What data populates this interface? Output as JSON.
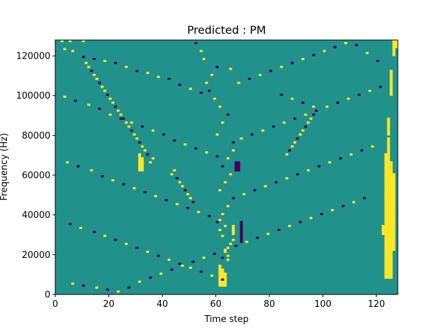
{
  "chart_data": {
    "type": "heatmap",
    "title": "Predicted : PM",
    "xlabel": "Time step",
    "ylabel": "Frequency (Hz)",
    "xlim": [
      0,
      128
    ],
    "ylim": [
      0,
      128000
    ],
    "x_ticks": [
      0,
      20,
      40,
      60,
      80,
      100,
      120
    ],
    "y_ticks": [
      0,
      20000,
      40000,
      60000,
      80000,
      100000,
      120000
    ],
    "x_tick_labels": [
      "0",
      "20",
      "40",
      "60",
      "80",
      "100",
      "120"
    ],
    "y_tick_labels": [
      "0",
      "20000",
      "40000",
      "60000",
      "80000",
      "100000",
      "120000"
    ],
    "grid_rows": 128,
    "grid_cols": 128,
    "background_value": 0,
    "colors": {
      "-1": "#440154",
      "0": "#21918c",
      "1": "#fde725"
    },
    "grid": false,
    "cells": [
      [
        2,
        127,
        1
      ],
      [
        5,
        127,
        1
      ],
      [
        10,
        127,
        1
      ],
      [
        3,
        123,
        1
      ],
      [
        6,
        122,
        1
      ],
      [
        10,
        119,
        -1
      ],
      [
        14,
        118,
        -1
      ],
      [
        18,
        117,
        1
      ],
      [
        22,
        116,
        -1
      ],
      [
        26,
        114,
        1
      ],
      [
        30,
        112,
        -1
      ],
      [
        34,
        111,
        1
      ],
      [
        38,
        109,
        1
      ],
      [
        42,
        108,
        -1
      ],
      [
        46,
        105,
        -1
      ],
      [
        50,
        103,
        1
      ],
      [
        54,
        101,
        -1
      ],
      [
        3,
        99,
        1
      ],
      [
        7,
        97,
        -1
      ],
      [
        12,
        95,
        1
      ],
      [
        16,
        93,
        -1
      ],
      [
        20,
        90,
        1
      ],
      [
        24,
        88,
        -1
      ],
      [
        28,
        86,
        1
      ],
      [
        32,
        84,
        -1
      ],
      [
        36,
        82,
        1
      ],
      [
        40,
        80,
        -1
      ],
      [
        44,
        77,
        -1
      ],
      [
        48,
        75,
        1
      ],
      [
        52,
        73,
        -1
      ],
      [
        56,
        71,
        1
      ],
      [
        60,
        69,
        -1
      ],
      [
        4,
        66,
        1
      ],
      [
        8,
        64,
        -1
      ],
      [
        13,
        62,
        1
      ],
      [
        17,
        59,
        -1
      ],
      [
        21,
        57,
        1
      ],
      [
        25,
        55,
        -1
      ],
      [
        29,
        53,
        1
      ],
      [
        33,
        51,
        -1
      ],
      [
        37,
        49,
        1
      ],
      [
        41,
        47,
        -1
      ],
      [
        45,
        45,
        1
      ],
      [
        49,
        43,
        -1
      ],
      [
        53,
        41,
        1
      ],
      [
        57,
        39,
        -1
      ],
      [
        61,
        37,
        1
      ],
      [
        5,
        35,
        -1
      ],
      [
        9,
        33,
        1
      ],
      [
        14,
        31,
        -1
      ],
      [
        18,
        29,
        1
      ],
      [
        22,
        27,
        -1
      ],
      [
        26,
        25,
        1
      ],
      [
        30,
        23,
        -1
      ],
      [
        34,
        21,
        1
      ],
      [
        38,
        19,
        -1
      ],
      [
        42,
        17,
        1
      ],
      [
        46,
        15,
        -1
      ],
      [
        50,
        13,
        1
      ],
      [
        54,
        11,
        -1
      ],
      [
        58,
        9,
        1
      ],
      [
        62,
        7,
        -1
      ],
      [
        6,
        5,
        1
      ],
      [
        10,
        4,
        -1
      ],
      [
        15,
        3,
        1
      ],
      [
        19,
        2,
        -1
      ],
      [
        23,
        1,
        1
      ],
      [
        27,
        3,
        -1
      ],
      [
        31,
        6,
        1
      ],
      [
        35,
        8,
        -1
      ],
      [
        39,
        10,
        1
      ],
      [
        43,
        12,
        -1
      ],
      [
        47,
        14,
        1
      ],
      [
        51,
        16,
        -1
      ],
      [
        55,
        18,
        1
      ],
      [
        59,
        20,
        -1
      ],
      [
        63,
        22,
        1
      ],
      [
        67,
        24,
        -1
      ],
      [
        71,
        26,
        1
      ],
      [
        75,
        28,
        -1
      ],
      [
        79,
        30,
        1
      ],
      [
        83,
        32,
        -1
      ],
      [
        87,
        34,
        1
      ],
      [
        91,
        36,
        -1
      ],
      [
        95,
        38,
        1
      ],
      [
        99,
        40,
        -1
      ],
      [
        103,
        42,
        1
      ],
      [
        107,
        44,
        -1
      ],
      [
        111,
        46,
        1
      ],
      [
        115,
        48,
        -1
      ],
      [
        70,
        50,
        1
      ],
      [
        74,
        52,
        -1
      ],
      [
        78,
        54,
        1
      ],
      [
        82,
        56,
        -1
      ],
      [
        86,
        58,
        1
      ],
      [
        90,
        60,
        -1
      ],
      [
        94,
        62,
        1
      ],
      [
        98,
        64,
        -1
      ],
      [
        102,
        66,
        1
      ],
      [
        106,
        68,
        -1
      ],
      [
        110,
        70,
        1
      ],
      [
        114,
        72,
        -1
      ],
      [
        118,
        74,
        1
      ],
      [
        66,
        76,
        -1
      ],
      [
        69,
        78,
        1
      ],
      [
        73,
        80,
        -1
      ],
      [
        77,
        82,
        1
      ],
      [
        81,
        84,
        -1
      ],
      [
        85,
        86,
        1
      ],
      [
        89,
        88,
        -1
      ],
      [
        93,
        90,
        1
      ],
      [
        97,
        92,
        -1
      ],
      [
        101,
        94,
        1
      ],
      [
        105,
        96,
        -1
      ],
      [
        109,
        98,
        1
      ],
      [
        113,
        100,
        -1
      ],
      [
        117,
        102,
        1
      ],
      [
        121,
        104,
        -1
      ],
      [
        68,
        106,
        1
      ],
      [
        72,
        108,
        -1
      ],
      [
        76,
        110,
        1
      ],
      [
        80,
        112,
        -1
      ],
      [
        84,
        114,
        1
      ],
      [
        88,
        116,
        -1
      ],
      [
        92,
        118,
        1
      ],
      [
        96,
        120,
        -1
      ],
      [
        100,
        122,
        1
      ],
      [
        104,
        124,
        -1
      ],
      [
        108,
        126,
        1
      ],
      [
        112,
        125,
        -1
      ],
      [
        116,
        121,
        1
      ],
      [
        120,
        117,
        -1
      ],
      [
        65,
        113,
        1
      ],
      [
        64,
        17,
        1
      ],
      [
        64,
        19,
        1
      ],
      [
        62,
        18,
        -1
      ],
      [
        63,
        21,
        1
      ],
      [
        64,
        23,
        1
      ],
      [
        65,
        25,
        1
      ],
      [
        66,
        27,
        1
      ],
      [
        62,
        29,
        1
      ],
      [
        61,
        32,
        1
      ],
      [
        63,
        34,
        1
      ],
      [
        60,
        36,
        -1
      ],
      [
        62,
        40,
        1
      ],
      [
        64,
        44,
        1
      ],
      [
        66,
        48,
        -1
      ],
      [
        61,
        52,
        1
      ],
      [
        63,
        56,
        1
      ],
      [
        65,
        60,
        1
      ],
      [
        62,
        64,
        -1
      ],
      [
        64,
        68,
        1
      ],
      [
        66,
        72,
        1
      ],
      [
        60,
        80,
        1
      ],
      [
        62,
        86,
        1
      ],
      [
        64,
        90,
        -1
      ],
      [
        61,
        94,
        1
      ],
      [
        59,
        98,
        1
      ],
      [
        57,
        102,
        -1
      ],
      [
        56,
        106,
        1
      ],
      [
        58,
        110,
        1
      ],
      [
        60,
        114,
        -1
      ],
      [
        55,
        118,
        1
      ],
      [
        54,
        122,
        1
      ],
      [
        52,
        126,
        -1
      ],
      [
        43,
        60,
        1
      ],
      [
        44,
        62,
        1
      ],
      [
        45,
        58,
        -1
      ],
      [
        46,
        56,
        1
      ],
      [
        47,
        54,
        1
      ],
      [
        48,
        52,
        -1
      ],
      [
        49,
        50,
        1
      ],
      [
        50,
        48,
        1
      ],
      [
        51,
        46,
        -1
      ],
      [
        35,
        66,
        1
      ],
      [
        36,
        68,
        1
      ],
      [
        34,
        70,
        -1
      ],
      [
        33,
        72,
        1
      ],
      [
        32,
        74,
        1
      ],
      [
        31,
        76,
        -1
      ],
      [
        30,
        78,
        1
      ],
      [
        29,
        80,
        1
      ],
      [
        28,
        82,
        -1
      ],
      [
        27,
        84,
        1
      ],
      [
        26,
        86,
        1
      ],
      [
        25,
        88,
        -1
      ],
      [
        24,
        90,
        1
      ],
      [
        23,
        92,
        1
      ],
      [
        22,
        94,
        -1
      ],
      [
        21,
        96,
        1
      ],
      [
        20,
        98,
        1
      ],
      [
        19,
        100,
        -1
      ],
      [
        18,
        102,
        1
      ],
      [
        17,
        104,
        1
      ],
      [
        16,
        106,
        -1
      ],
      [
        15,
        108,
        1
      ],
      [
        14,
        110,
        1
      ],
      [
        13,
        112,
        -1
      ],
      [
        12,
        114,
        1
      ],
      [
        11,
        116,
        1
      ],
      [
        84,
        100,
        -1
      ],
      [
        88,
        98,
        1
      ],
      [
        92,
        96,
        -1
      ],
      [
        96,
        94,
        1
      ],
      [
        86,
        70,
        1
      ],
      [
        87,
        72,
        -1
      ],
      [
        88,
        74,
        1
      ],
      [
        89,
        76,
        1
      ],
      [
        90,
        78,
        -1
      ],
      [
        91,
        80,
        1
      ],
      [
        92,
        82,
        1
      ],
      [
        93,
        84,
        -1
      ],
      [
        94,
        86,
        1
      ],
      [
        95,
        88,
        1
      ],
      [
        96,
        90,
        -1
      ]
    ],
    "column_bands": [
      {
        "x": 123,
        "y_from": 8,
        "y_to": 70,
        "value": 1
      },
      {
        "x": 124,
        "y_from": 8,
        "y_to": 78,
        "value": 1
      },
      {
        "x": 125,
        "y_from": 8,
        "y_to": 66,
        "value": 1
      },
      {
        "x": 126,
        "y_from": 22,
        "y_to": 60,
        "value": 1
      },
      {
        "x": 124,
        "y_from": 80,
        "y_to": 88,
        "value": 1
      },
      {
        "x": 125,
        "y_from": 100,
        "y_to": 112,
        "value": 1
      },
      {
        "x": 126,
        "y_from": 120,
        "y_to": 127,
        "value": 1
      },
      {
        "x": 127,
        "y_from": 124,
        "y_to": 127,
        "value": 1
      },
      {
        "x": 61,
        "y_from": 4,
        "y_to": 14,
        "value": 1
      },
      {
        "x": 62,
        "y_from": 4,
        "y_to": 12,
        "value": 1
      },
      {
        "x": 63,
        "y_from": 4,
        "y_to": 10,
        "value": 1
      },
      {
        "x": 66,
        "y_from": 30,
        "y_to": 34,
        "value": 1
      },
      {
        "x": 67,
        "y_from": 62,
        "y_to": 66,
        "value": -1
      },
      {
        "x": 68,
        "y_from": 62,
        "y_to": 66,
        "value": -1
      },
      {
        "x": 69,
        "y_from": 26,
        "y_to": 36,
        "value": -1
      },
      {
        "x": 31,
        "y_from": 62,
        "y_to": 70,
        "value": 1
      },
      {
        "x": 32,
        "y_from": 62,
        "y_to": 68,
        "value": 1
      },
      {
        "x": 122,
        "y_from": 30,
        "y_to": 34,
        "value": 1
      }
    ]
  }
}
